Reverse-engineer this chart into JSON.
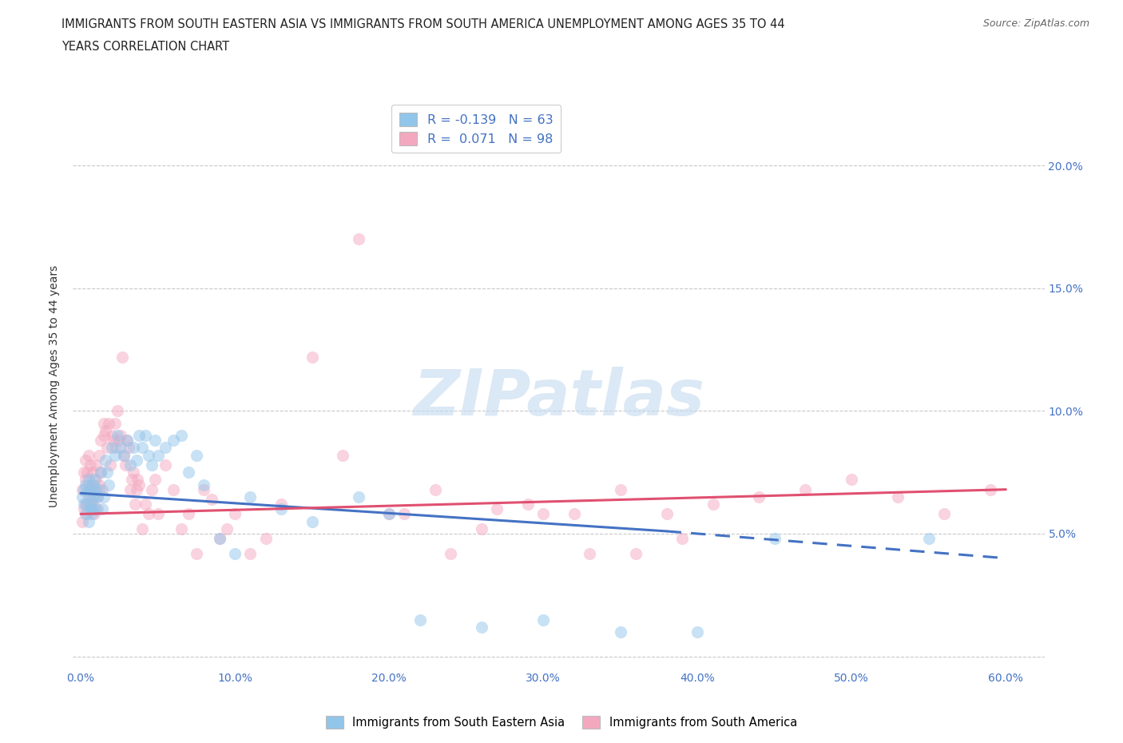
{
  "title_line1": "IMMIGRANTS FROM SOUTH EASTERN ASIA VS IMMIGRANTS FROM SOUTH AMERICA UNEMPLOYMENT AMONG AGES 35 TO 44",
  "title_line2": "YEARS CORRELATION CHART",
  "source": "Source: ZipAtlas.com",
  "ylabel": "Unemployment Among Ages 35 to 44 years",
  "xlim": [
    -0.005,
    0.625
  ],
  "ylim": [
    -0.005,
    0.225
  ],
  "xticks": [
    0.0,
    0.1,
    0.2,
    0.3,
    0.4,
    0.5,
    0.6
  ],
  "xticklabels": [
    "0.0%",
    "10.0%",
    "20.0%",
    "30.0%",
    "40.0%",
    "50.0%",
    "60.0%"
  ],
  "yticks": [
    0.0,
    0.05,
    0.1,
    0.15,
    0.2
  ],
  "right_yticklabels": [
    "",
    "5.0%",
    "10.0%",
    "15.0%",
    "20.0%"
  ],
  "color_sea": "#92C5EA",
  "color_sa": "#F4A8C0",
  "color_sea_line": "#4472C4",
  "color_sa_line": "#E05070",
  "R_sea": -0.139,
  "N_sea": 63,
  "R_sa": 0.071,
  "N_sa": 98,
  "legend_label_sea": "Immigrants from South Eastern Asia",
  "legend_label_sa": "Immigrants from South America",
  "watermark": "ZIPatlas",
  "background_color": "#ffffff",
  "grid_color": "#c8c8c8",
  "scatter_alpha": 0.5,
  "scatter_size": 120,
  "sea_x": [
    0.001,
    0.002,
    0.002,
    0.003,
    0.003,
    0.004,
    0.004,
    0.005,
    0.005,
    0.006,
    0.006,
    0.007,
    0.007,
    0.008,
    0.008,
    0.009,
    0.009,
    0.01,
    0.01,
    0.011,
    0.012,
    0.013,
    0.014,
    0.015,
    0.016,
    0.017,
    0.018,
    0.02,
    0.022,
    0.024,
    0.026,
    0.028,
    0.03,
    0.032,
    0.034,
    0.036,
    0.038,
    0.04,
    0.042,
    0.044,
    0.046,
    0.048,
    0.05,
    0.055,
    0.06,
    0.065,
    0.07,
    0.075,
    0.08,
    0.09,
    0.1,
    0.11,
    0.13,
    0.15,
    0.18,
    0.2,
    0.22,
    0.26,
    0.3,
    0.35,
    0.4,
    0.45,
    0.55
  ],
  "sea_y": [
    0.065,
    0.062,
    0.068,
    0.058,
    0.07,
    0.062,
    0.067,
    0.055,
    0.072,
    0.06,
    0.068,
    0.063,
    0.058,
    0.07,
    0.06,
    0.065,
    0.072,
    0.06,
    0.068,
    0.065,
    0.068,
    0.075,
    0.06,
    0.065,
    0.08,
    0.075,
    0.07,
    0.085,
    0.082,
    0.09,
    0.085,
    0.082,
    0.088,
    0.078,
    0.085,
    0.08,
    0.09,
    0.085,
    0.09,
    0.082,
    0.078,
    0.088,
    0.082,
    0.085,
    0.088,
    0.09,
    0.075,
    0.082,
    0.07,
    0.048,
    0.042,
    0.065,
    0.06,
    0.055,
    0.065,
    0.058,
    0.015,
    0.012,
    0.015,
    0.01,
    0.01,
    0.048,
    0.048
  ],
  "sa_x": [
    0.001,
    0.001,
    0.002,
    0.002,
    0.003,
    0.003,
    0.003,
    0.004,
    0.004,
    0.005,
    0.005,
    0.005,
    0.006,
    0.006,
    0.006,
    0.007,
    0.007,
    0.008,
    0.008,
    0.009,
    0.009,
    0.01,
    0.01,
    0.011,
    0.011,
    0.012,
    0.012,
    0.013,
    0.013,
    0.014,
    0.015,
    0.015,
    0.016,
    0.017,
    0.018,
    0.019,
    0.02,
    0.021,
    0.022,
    0.023,
    0.024,
    0.025,
    0.026,
    0.027,
    0.028,
    0.029,
    0.03,
    0.031,
    0.032,
    0.033,
    0.034,
    0.035,
    0.036,
    0.037,
    0.038,
    0.04,
    0.042,
    0.044,
    0.046,
    0.048,
    0.05,
    0.055,
    0.06,
    0.065,
    0.07,
    0.075,
    0.08,
    0.085,
    0.09,
    0.095,
    0.1,
    0.11,
    0.12,
    0.13,
    0.15,
    0.17,
    0.2,
    0.23,
    0.26,
    0.29,
    0.32,
    0.35,
    0.38,
    0.41,
    0.44,
    0.47,
    0.5,
    0.53,
    0.56,
    0.59,
    0.18,
    0.21,
    0.24,
    0.27,
    0.3,
    0.33,
    0.36,
    0.39
  ],
  "sa_y": [
    0.068,
    0.055,
    0.075,
    0.06,
    0.072,
    0.062,
    0.08,
    0.058,
    0.075,
    0.082,
    0.065,
    0.07,
    0.078,
    0.062,
    0.068,
    0.07,
    0.06,
    0.075,
    0.065,
    0.068,
    0.058,
    0.072,
    0.078,
    0.065,
    0.06,
    0.082,
    0.07,
    0.088,
    0.075,
    0.068,
    0.09,
    0.095,
    0.092,
    0.085,
    0.095,
    0.078,
    0.09,
    0.088,
    0.095,
    0.085,
    0.1,
    0.088,
    0.09,
    0.122,
    0.082,
    0.078,
    0.088,
    0.085,
    0.068,
    0.072,
    0.075,
    0.062,
    0.068,
    0.072,
    0.07,
    0.052,
    0.062,
    0.058,
    0.068,
    0.072,
    0.058,
    0.078,
    0.068,
    0.052,
    0.058,
    0.042,
    0.068,
    0.064,
    0.048,
    0.052,
    0.058,
    0.042,
    0.048,
    0.062,
    0.122,
    0.082,
    0.058,
    0.068,
    0.052,
    0.062,
    0.058,
    0.068,
    0.058,
    0.062,
    0.065,
    0.068,
    0.072,
    0.065,
    0.058,
    0.068,
    0.17,
    0.058,
    0.042,
    0.06,
    0.058,
    0.042,
    0.042,
    0.048
  ],
  "trend_sea_x0": 0.0,
  "trend_sea_y0": 0.0665,
  "trend_sea_x1": 0.38,
  "trend_sea_y1": 0.051,
  "trend_sea_x2": 0.6,
  "trend_sea_y2": 0.04,
  "trend_sa_x0": 0.0,
  "trend_sa_y0": 0.058,
  "trend_sa_x1": 0.6,
  "trend_sa_y1": 0.068
}
